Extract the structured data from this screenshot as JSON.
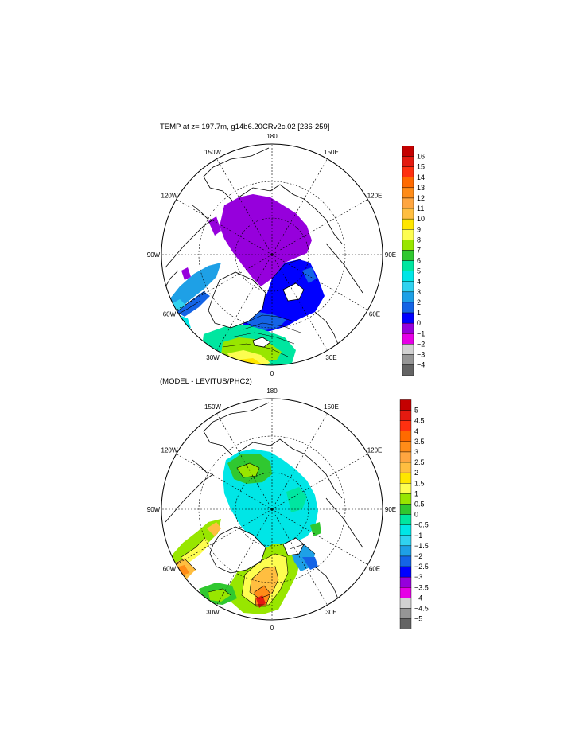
{
  "panels": [
    {
      "title": "TEMP at z= 197.7m, g14b6.20CRv2c.02 [236-259]",
      "meridian_labels": [
        {
          "lon": 180,
          "text": "180"
        },
        {
          "lon": 150,
          "text": "150E"
        },
        {
          "lon": 120,
          "text": "120E"
        },
        {
          "lon": 90,
          "text": "90E"
        },
        {
          "lon": 60,
          "text": "60E"
        },
        {
          "lon": 30,
          "text": "30E"
        },
        {
          "lon": 0,
          "text": "0"
        },
        {
          "lon": -30,
          "text": "30W"
        },
        {
          "lon": -60,
          "text": "60W"
        },
        {
          "lon": -90,
          "text": "90W"
        },
        {
          "lon": -120,
          "text": "120W"
        },
        {
          "lon": -150,
          "text": "150W"
        }
      ],
      "colorbar": {
        "labels": [
          "16",
          "15",
          "14",
          "13",
          "12",
          "11",
          "10",
          "9",
          "8",
          "7",
          "6",
          "5",
          "4",
          "3",
          "2",
          "1",
          "0",
          "−1",
          "−2",
          "−3",
          "−4"
        ],
        "colors": [
          "#c40000",
          "#e41a10",
          "#ff3010",
          "#ff6a00",
          "#ff8c18",
          "#ffa640",
          "#ffbe40",
          "#ffe600",
          "#fdfd50",
          "#98e600",
          "#30c830",
          "#00e6a0",
          "#00e6e6",
          "#30d2f0",
          "#1ea0e6",
          "#1464e6",
          "#0000ff",
          "#9600dc",
          "#e600e6",
          "#d2d2d2",
          "#969696",
          "#646464"
        ]
      }
    },
    {
      "title": "(MODEL - LEVITUS/PHC2)",
      "meridian_labels": [
        {
          "lon": 180,
          "text": "180"
        },
        {
          "lon": 150,
          "text": "150E"
        },
        {
          "lon": 120,
          "text": "120E"
        },
        {
          "lon": 90,
          "text": "90E"
        },
        {
          "lon": 60,
          "text": "60E"
        },
        {
          "lon": 30,
          "text": "30E"
        },
        {
          "lon": 0,
          "text": "0"
        },
        {
          "lon": -30,
          "text": "30W"
        },
        {
          "lon": -60,
          "text": "60W"
        },
        {
          "lon": -90,
          "text": "90W"
        },
        {
          "lon": -120,
          "text": "120W"
        },
        {
          "lon": -150,
          "text": "150W"
        }
      ],
      "colorbar": {
        "labels": [
          "5",
          "4.5",
          "4",
          "3.5",
          "3",
          "2.5",
          "2",
          "1.5",
          "1",
          "0.5",
          "0",
          "−0.5",
          "−1",
          "−1.5",
          "−2",
          "−2.5",
          "−3",
          "−3.5",
          "−4",
          "−4.5",
          "−5"
        ],
        "colors": [
          "#c40000",
          "#e41a10",
          "#ff3010",
          "#ff6a00",
          "#ff8c18",
          "#ffa640",
          "#ffbe40",
          "#ffe600",
          "#fdfd50",
          "#98e600",
          "#30c830",
          "#00e6a0",
          "#00e6e6",
          "#30d2f0",
          "#1ea0e6",
          "#1464e6",
          "#0000ff",
          "#9600dc",
          "#e600e6",
          "#d2d2d2",
          "#969696",
          "#646464"
        ]
      }
    }
  ]
}
